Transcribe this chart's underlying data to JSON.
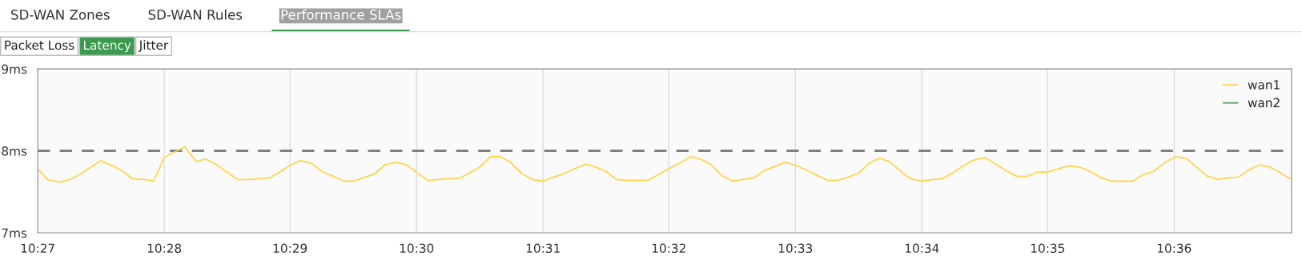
{
  "chart_data": {
    "type": "line",
    "annotations": [
      "SD-WAN Zones",
      "SD-WAN Rules",
      "Performance SLAs",
      "Packet Loss",
      "Latency",
      "Jitter"
    ],
    "series": [
      {
        "name": "wan1",
        "color": "#ffd54f",
        "x": [
          10.45,
          10.4513,
          10.4528,
          10.4542,
          10.4555,
          10.457,
          10.4583,
          10.4598,
          10.4611,
          10.4625,
          10.464,
          10.4653,
          10.4667,
          10.4694,
          10.4709,
          10.4722,
          10.4736,
          10.4764,
          10.4778,
          10.4806,
          10.4819,
          10.4834,
          10.4847,
          10.4861,
          10.4875,
          10.4888,
          10.4904,
          10.4917,
          10.4932,
          10.4945,
          10.4958,
          10.4973,
          10.4987,
          10.5001,
          10.5015,
          10.5028,
          10.5041,
          10.5055,
          10.507,
          10.5083,
          10.5098,
          10.511,
          10.5124,
          10.5138,
          10.5153,
          10.5167,
          10.5181,
          10.5194,
          10.5208,
          10.5223,
          10.5237,
          10.525,
          10.5264,
          10.5277,
          10.5306,
          10.5319,
          10.5333,
          10.5347,
          10.5362,
          10.5375,
          10.5389,
          10.5403,
          10.5417,
          10.543,
          10.5445,
          10.5459,
          10.5473,
          10.5487,
          10.5501,
          10.5516,
          10.5529,
          10.5543,
          10.5556,
          10.557,
          10.5584,
          10.5597,
          10.5611,
          10.5624,
          10.5638,
          10.5652,
          10.5667,
          10.5681,
          10.5694,
          10.5709,
          10.5722,
          10.5736,
          10.575,
          10.5764,
          10.5778,
          10.5792,
          10.5806,
          10.5819,
          10.5833,
          10.5847,
          10.5862,
          10.5876,
          10.5889,
          10.5904,
          10.5917,
          10.593,
          10.5945,
          10.5959,
          10.5973,
          10.5988,
          10.6002,
          10.6016,
          10.603,
          10.6044,
          10.6058,
          10.6071,
          10.6085,
          10.6099,
          10.6113,
          10.6127,
          10.6141,
          10.6155
        ],
        "values": [
          7.78,
          7.65,
          7.62,
          7.65,
          7.71,
          7.8,
          7.88,
          7.82,
          7.76,
          7.66,
          7.65,
          7.63,
          7.92,
          8.05,
          7.87,
          7.9,
          7.83,
          7.65,
          7.65,
          7.67,
          7.74,
          7.83,
          7.88,
          7.85,
          7.75,
          7.7,
          7.63,
          7.63,
          7.68,
          7.72,
          7.83,
          7.86,
          7.83,
          7.73,
          7.64,
          7.65,
          7.66,
          7.66,
          7.73,
          7.8,
          7.93,
          7.93,
          7.86,
          7.73,
          7.65,
          7.63,
          7.68,
          7.72,
          7.78,
          7.84,
          7.8,
          7.75,
          7.65,
          7.64,
          7.64,
          7.71,
          7.78,
          7.85,
          7.93,
          7.9,
          7.83,
          7.7,
          7.63,
          7.65,
          7.67,
          7.76,
          7.81,
          7.86,
          7.82,
          7.76,
          7.7,
          7.64,
          7.64,
          7.68,
          7.73,
          7.85,
          7.91,
          7.87,
          7.76,
          7.66,
          7.63,
          7.65,
          7.66,
          7.74,
          7.82,
          7.89,
          7.92,
          7.84,
          7.76,
          7.69,
          7.69,
          7.74,
          7.74,
          7.78,
          7.82,
          7.8,
          7.75,
          7.67,
          7.63,
          7.63,
          7.63,
          7.71,
          7.75,
          7.86,
          7.93,
          7.91,
          7.8,
          7.69,
          7.65,
          7.67,
          7.68,
          7.77,
          7.83,
          7.8,
          7.73,
          7.65
        ]
      },
      {
        "name": "wan2",
        "color": "#4f9a5c"
      }
    ],
    "xlim": [
      10.45,
      10.6155
    ],
    "xticks": [
      {
        "value": 10.45,
        "label": "10:27"
      },
      {
        "value": 10.4667,
        "label": "10:28"
      },
      {
        "value": 10.4833,
        "label": "10:29"
      },
      {
        "value": 10.5,
        "label": "10:30"
      },
      {
        "value": 10.5167,
        "label": "10:31"
      },
      {
        "value": 10.5333,
        "label": "10:32"
      },
      {
        "value": 10.55,
        "label": "10:33"
      },
      {
        "value": 10.5667,
        "label": "10:34"
      },
      {
        "value": 10.5833,
        "label": "10:35"
      },
      {
        "value": 10.6,
        "label": "10:36"
      }
    ],
    "ylim": [
      7,
      9
    ],
    "yticks": [
      {
        "value": 7,
        "label": "7ms"
      },
      {
        "value": 8,
        "label": "8ms"
      },
      {
        "value": 9,
        "label": "9ms"
      }
    ],
    "ref_lines": [
      {
        "axis": "y",
        "value": 8,
        "color": "#808080",
        "line_style": "dashed"
      }
    ],
    "grid": "x",
    "legend": "top right",
    "marker": "none",
    "line_style": "solid"
  }
}
